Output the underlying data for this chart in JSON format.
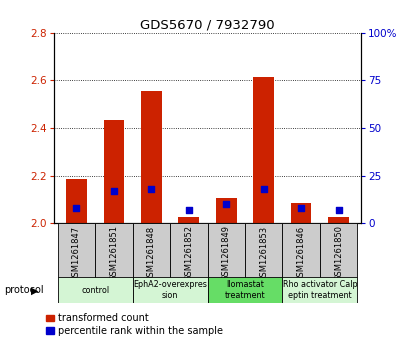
{
  "title": "GDS5670 / 7932790",
  "samples": [
    "GSM1261847",
    "GSM1261851",
    "GSM1261848",
    "GSM1261852",
    "GSM1261849",
    "GSM1261853",
    "GSM1261846",
    "GSM1261850"
  ],
  "red_values": [
    2.185,
    2.435,
    2.555,
    2.025,
    2.105,
    2.615,
    2.085,
    2.025
  ],
  "blue_values_pct": [
    8,
    17,
    18,
    7,
    10,
    18,
    8,
    7
  ],
  "ylim_left": [
    2.0,
    2.8
  ],
  "ylim_right": [
    0,
    100
  ],
  "yticks_left": [
    2.0,
    2.2,
    2.4,
    2.6,
    2.8
  ],
  "yticks_right": [
    0,
    25,
    50,
    75,
    100
  ],
  "ytick_labels_right": [
    "0",
    "25",
    "50",
    "75",
    "100%"
  ],
  "protocols": [
    {
      "label": "control",
      "samples": [
        0,
        1
      ],
      "color": "#d4f5d4"
    },
    {
      "label": "EphA2-overexpres\nsion",
      "samples": [
        2,
        3
      ],
      "color": "#d4f5d4"
    },
    {
      "label": "Ilomastat\ntreatment",
      "samples": [
        4,
        5
      ],
      "color": "#66dd66"
    },
    {
      "label": "Rho activator Calp\neptin treatment",
      "samples": [
        6,
        7
      ],
      "color": "#d4f5d4"
    }
  ],
  "bar_color": "#cc2200",
  "dot_color": "#0000cc",
  "base_value": 2.0,
  "bar_width": 0.55,
  "dot_size": 18,
  "xlabel_color": "#cc2200",
  "ylabel_right_color": "#0000cc",
  "grid_color": "#000000",
  "legend_red_label": "transformed count",
  "legend_blue_label": "percentile rank within the sample",
  "sample_bg_color": "#cccccc"
}
